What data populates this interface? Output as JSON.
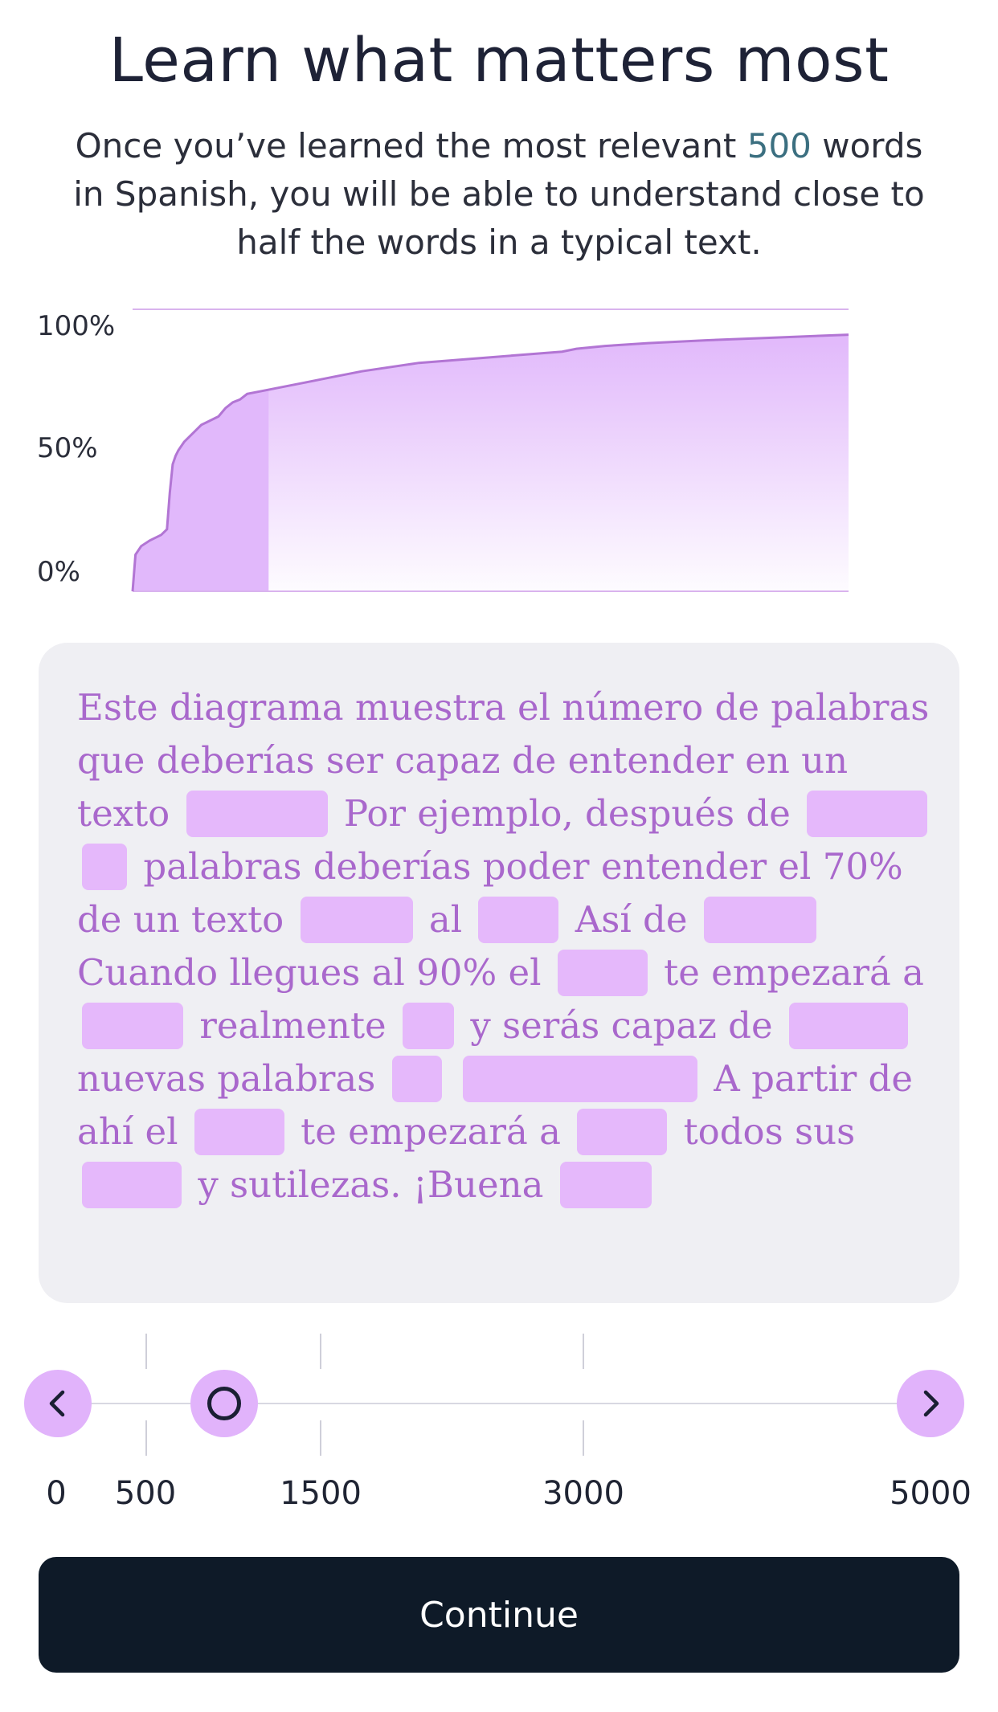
{
  "header": {
    "title": "Learn what matters most",
    "subtitle_before": "Once you’ve learned the most relevant ",
    "subtitle_highlight": "500",
    "subtitle_after": " words in Spanish, you will be able to understand close to half the words in a typical text."
  },
  "chart_data": {
    "type": "area",
    "y_tick_labels": [
      "100%",
      "50%",
      "0%"
    ],
    "ylim": [
      0,
      100
    ],
    "xlim": [
      0,
      5000
    ],
    "x": [
      0,
      20,
      60,
      120,
      200,
      240,
      260,
      280,
      300,
      320,
      360,
      400,
      440,
      480,
      520,
      560,
      600,
      650,
      700,
      750,
      800,
      900,
      1000,
      1200,
      1400,
      1600,
      2000,
      2500,
      3000,
      3100,
      3300,
      3600,
      4000,
      4500,
      5000
    ],
    "y": [
      0,
      13,
      16,
      18,
      20,
      22,
      35,
      45,
      48,
      50,
      53,
      55,
      57,
      59,
      60,
      61,
      62,
      65,
      67,
      68,
      70,
      71,
      72,
      74,
      76,
      78,
      81,
      83,
      85,
      86,
      87,
      88,
      89,
      90,
      91
    ],
    "highlighted_until": 950,
    "colors": {
      "line": "#b275d4",
      "fill": "#e1b8fb",
      "grid": "#d9b3ee"
    }
  },
  "card": {
    "segments": [
      {
        "t": "Este diagrama muestra el número de palabras que deberías ser capaz de entender en un texto"
      },
      {
        "blank": 176
      },
      {
        "t": "Por ejemplo, después de"
      },
      {
        "blank": 150
      },
      {
        "blank": 56
      },
      {
        "t": "palabras deberías poder entender el 70% de un texto"
      },
      {
        "blank": 140
      },
      {
        "t": "al"
      },
      {
        "blank": 100
      },
      {
        "t": "Así de"
      },
      {
        "blank": 140
      },
      {
        "t": "Cuando llegues al 90% el"
      },
      {
        "blank": 112
      },
      {
        "t": "te empezará a"
      },
      {
        "blank": 126
      },
      {
        "t": "realmente"
      },
      {
        "blank": 64
      },
      {
        "t": "y serás capaz de"
      },
      {
        "blank": 148
      },
      {
        "t": "nuevas palabras"
      },
      {
        "blank": 62
      },
      {
        "blank": 292
      },
      {
        "t": "A partir de ahí el"
      },
      {
        "blank": 112
      },
      {
        "t": "te empezará a"
      },
      {
        "blank": 112
      },
      {
        "t": "todos sus"
      },
      {
        "blank": 124
      },
      {
        "t": "y sutilezas. ¡Buena"
      },
      {
        "blank": 114
      }
    ]
  },
  "slider": {
    "prev_icon": "chevron-left-icon",
    "next_icon": "chevron-right-icon",
    "value": 950,
    "min": 0,
    "max": 5000,
    "tick_labels": [
      "0",
      "500",
      "1500",
      "3000",
      "5000"
    ]
  },
  "footer": {
    "continue_label": "Continue"
  }
}
